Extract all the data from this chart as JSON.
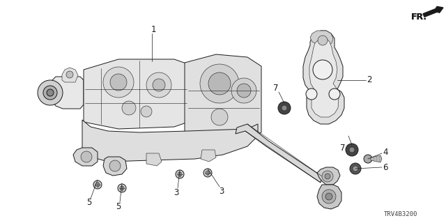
{
  "background_color": "#ffffff",
  "line_color": "#1a1a1a",
  "part_number_text": "TRV4B3200",
  "direction_label": "FR.",
  "figsize": [
    6.4,
    3.2
  ],
  "dpi": 100,
  "gray_dark": "#222222",
  "gray_mid": "#555555",
  "gray_light": "#999999",
  "gray_fill": "#cccccc"
}
